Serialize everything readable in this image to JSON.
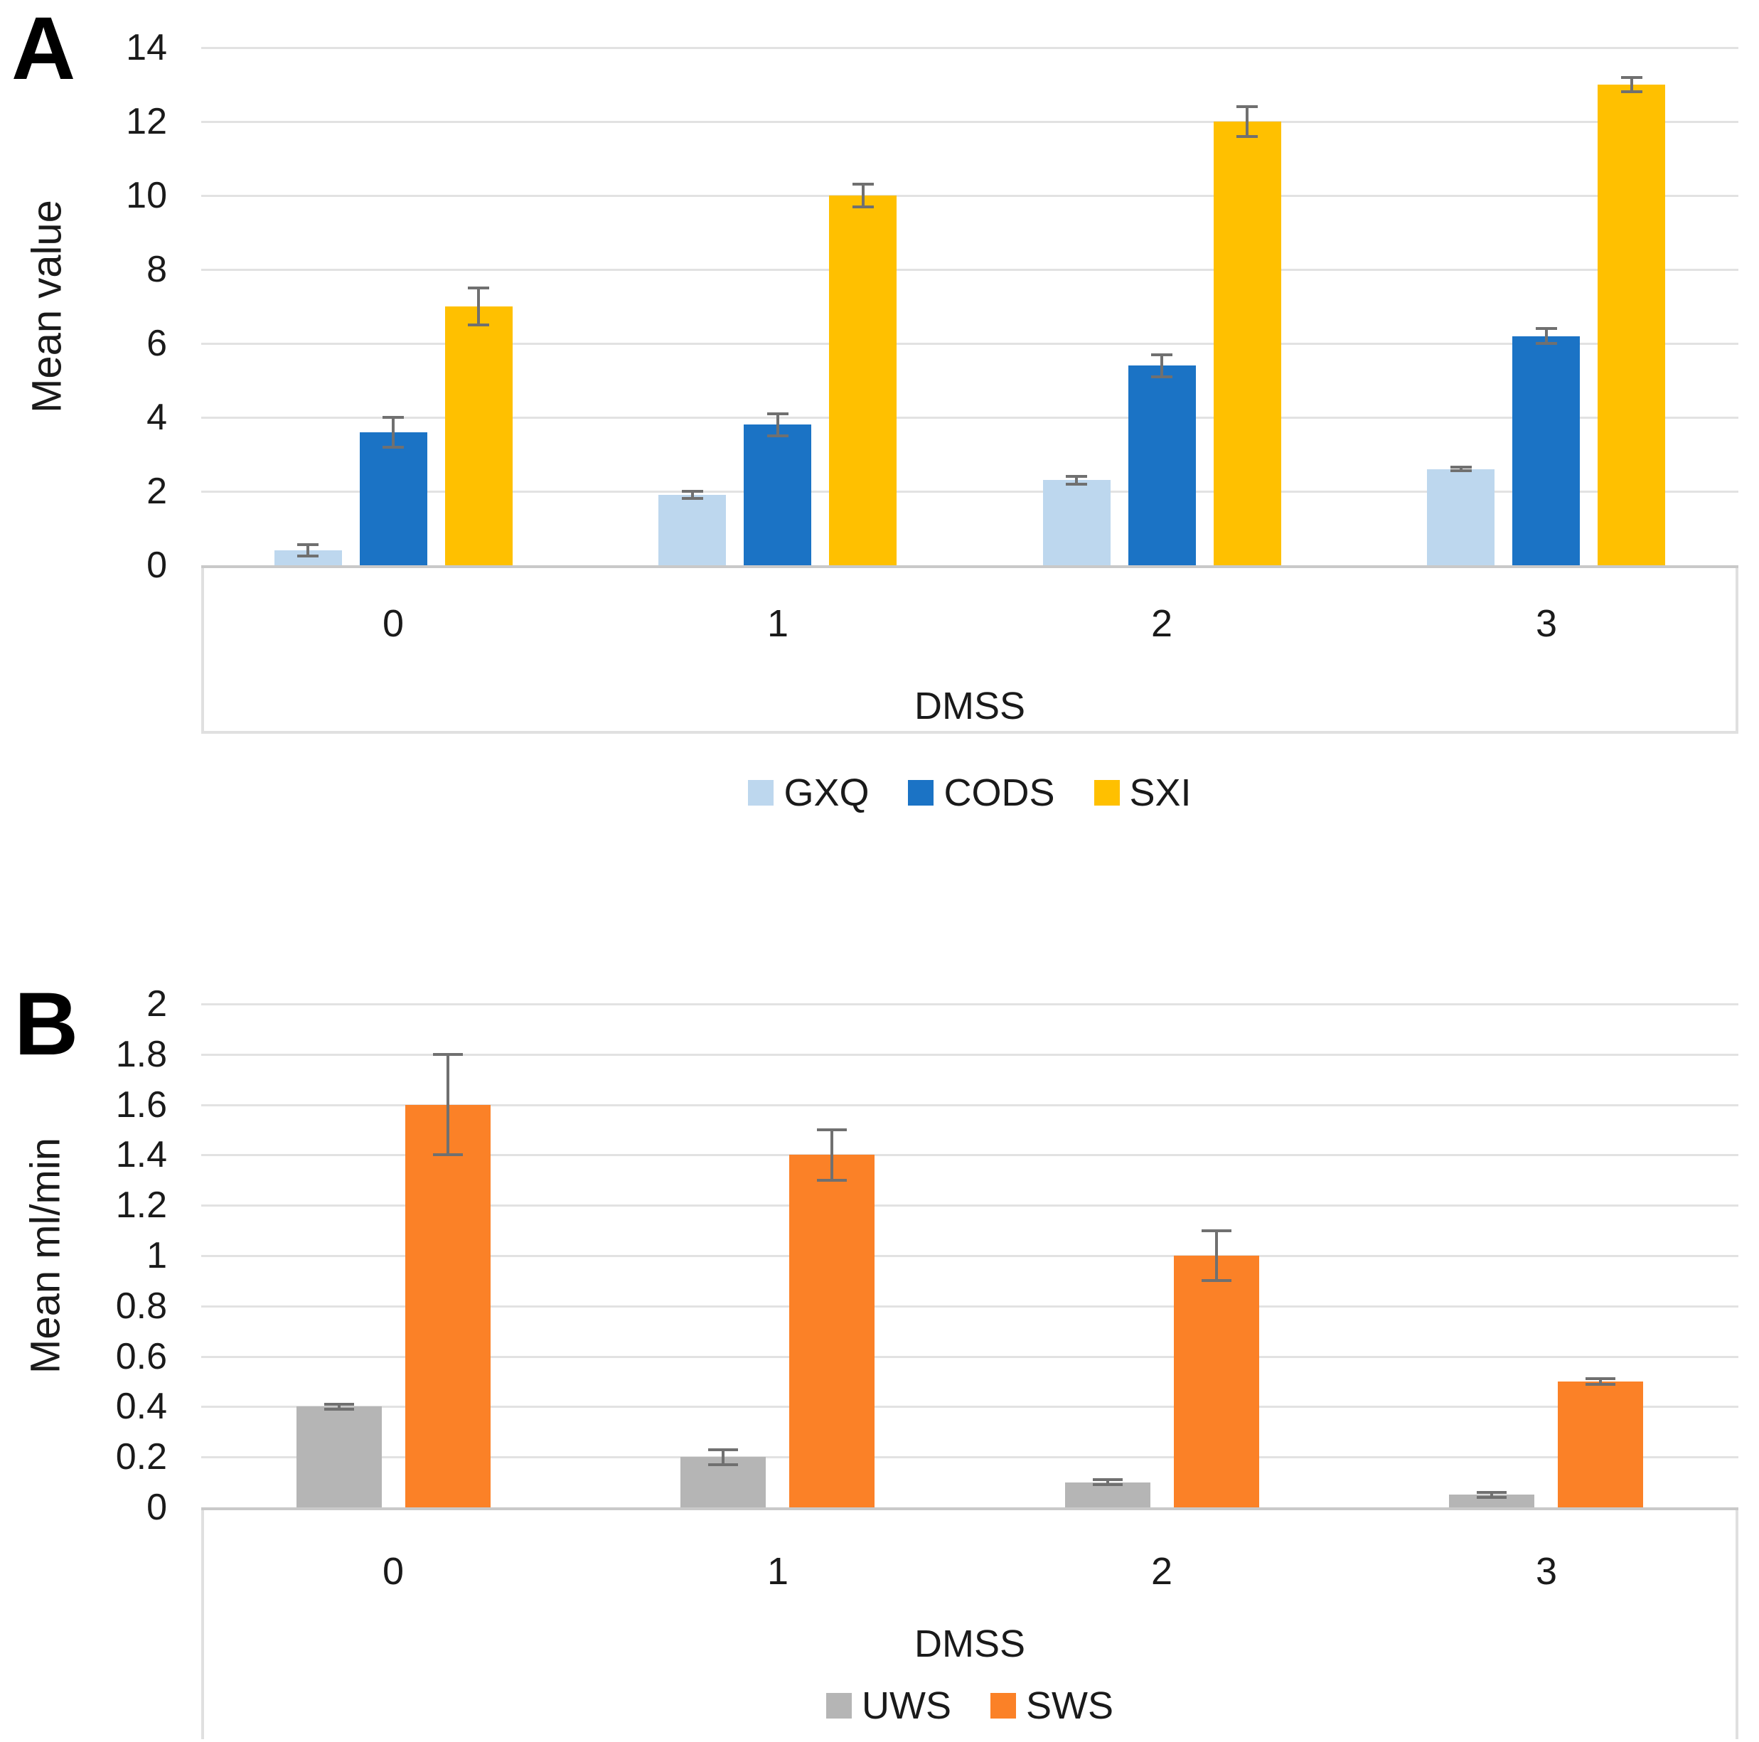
{
  "chart_data": [
    {
      "panel": "A",
      "type": "bar",
      "title": "",
      "xlabel": "DMSS",
      "ylabel": "Mean value",
      "categories": [
        "0",
        "1",
        "2",
        "3"
      ],
      "series": [
        {
          "name": "GXQ",
          "color": "#BDD7EE",
          "values": [
            0.4,
            1.9,
            2.3,
            2.6
          ],
          "errors": [
            0.15,
            0.1,
            0.1,
            0.05
          ]
        },
        {
          "name": "CODS",
          "color": "#1B73C5",
          "values": [
            3.6,
            3.8,
            5.4,
            6.2
          ],
          "errors": [
            0.4,
            0.3,
            0.3,
            0.2
          ]
        },
        {
          "name": "SXI",
          "color": "#FFC000",
          "values": [
            7.0,
            10.0,
            12.0,
            13.0
          ],
          "errors": [
            0.5,
            0.3,
            0.4,
            0.2
          ]
        }
      ],
      "ylim": [
        0,
        14
      ],
      "ytick_step": 2,
      "grid": true,
      "legend_position": "bottom",
      "error_bar_color": "#707070"
    },
    {
      "panel": "B",
      "type": "bar",
      "title": "",
      "xlabel": "DMSS",
      "ylabel": "Mean ml/min",
      "categories": [
        "0",
        "1",
        "2",
        "3"
      ],
      "series": [
        {
          "name": "UWS",
          "color": "#B5B5B5",
          "values": [
            0.4,
            0.2,
            0.1,
            0.05
          ],
          "errors": [
            0.01,
            0.03,
            0.01,
            0.01
          ]
        },
        {
          "name": "SWS",
          "color": "#FB8127",
          "values": [
            1.6,
            1.4,
            1.0,
            0.5
          ],
          "errors": [
            0.2,
            0.1,
            0.1,
            0.01
          ]
        }
      ],
      "ylim": [
        0,
        2
      ],
      "ytick_step": 0.2,
      "grid": true,
      "legend_position": "bottom",
      "error_bar_color": "#707070"
    }
  ]
}
